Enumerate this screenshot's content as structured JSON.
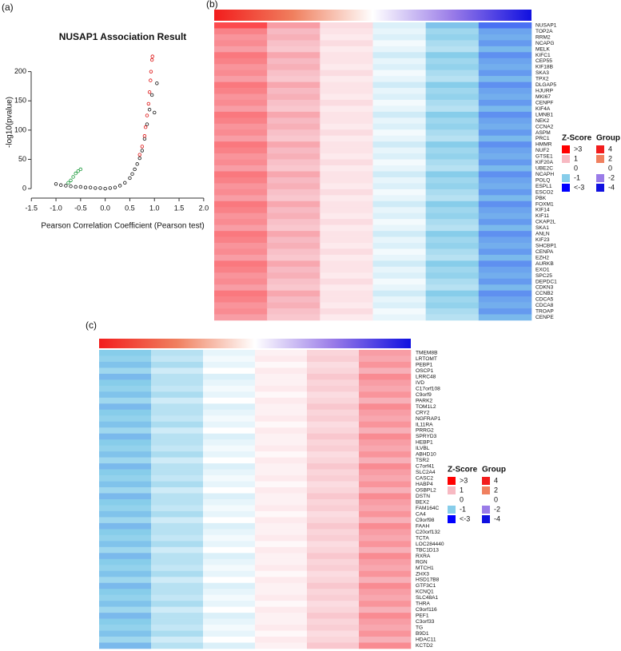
{
  "chart_data": [
    {
      "type": "scatter",
      "panel_label": "(a)",
      "title": "NUSAP1 Association Result",
      "x_label": "Pearson Correlation Coefficient (Pearson test)",
      "y_label": "-log10(pvalue)",
      "xlim": [
        -1.65,
        2.1
      ],
      "ylim": [
        -8,
        235
      ],
      "xticks": [
        -1.5,
        {
          "value": -1,
          "label": "-1.0"
        },
        -0.5,
        {
          "value": 0,
          "label": "0.0"
        },
        0.5,
        {
          "value": 1,
          "label": "1.0"
        },
        1.5,
        {
          "value": 2,
          "label": "2.0"
        }
      ],
      "yticks": [
        0,
        50,
        100,
        150,
        200
      ],
      "series": [
        {
          "color": "#111111",
          "x": [
            -1.0,
            -0.9,
            -0.8,
            -0.7,
            -0.6,
            -0.5,
            -0.4,
            -0.3,
            -0.2,
            -0.1,
            0,
            0.1,
            0.2,
            0.3,
            0.4,
            0.5,
            0.55,
            0.6,
            0.65,
            0.7,
            0.75,
            0.8,
            0.85,
            0.9,
            0.95,
            1.0,
            1.05
          ],
          "values": [
            8,
            6,
            5,
            4,
            3,
            3,
            2,
            2,
            1,
            1,
            0,
            1,
            2,
            5,
            10,
            18,
            25,
            33,
            42,
            52,
            65,
            85,
            110,
            135,
            160,
            130,
            180
          ]
        },
        {
          "color": "#dd1111",
          "x": [
            0.7,
            0.75,
            0.8,
            0.82,
            0.85,
            0.88,
            0.9,
            0.92,
            0.93,
            0.95,
            0.96
          ],
          "values": [
            58,
            72,
            90,
            105,
            125,
            145,
            165,
            185,
            200,
            220,
            226
          ]
        },
        {
          "color": "#1a9a3a",
          "x": [
            -0.75,
            -0.7,
            -0.65,
            -0.6,
            -0.55,
            -0.5
          ],
          "values": [
            10,
            14,
            20,
            26,
            30,
            33
          ]
        }
      ]
    },
    {
      "type": "heatmap",
      "panel_label": "(b)",
      "rows": [
        "NUSAP1",
        "TOP2A",
        "RRM2",
        "NCAPG",
        "MELK",
        "KIFC1",
        "CEP55",
        "KIF18B",
        "SKA3",
        "TPX2",
        "DLGAP5",
        "HJURP",
        "MKI67",
        "CENPF",
        "KIF4A",
        "LMNB1",
        "NEK2",
        "CCNA2",
        "ASPM",
        "PRC1",
        "HMMR",
        "NUF2",
        "GTSE1",
        "KIF20A",
        "UBE2C",
        "NCAPH",
        "POLQ",
        "ESPL1",
        "ESCO2",
        "PBK",
        "FOXM1",
        "KIF14",
        "KIF11",
        "CKAP2L",
        "SKA1",
        "ANLN",
        "KIF23",
        "SHCBP1",
        "CENPA",
        "EZH2",
        "AURKB",
        "EXO1",
        "SPC25",
        "DEPDC1",
        "CDKN3",
        "CCNB2",
        "CDCA5",
        "CDCA8",
        "TROAP",
        "CENPE"
      ],
      "values": [
        [
          2.2,
          1.3,
          0.5,
          -0.3,
          -1.1,
          -1.9
        ],
        [
          1.6,
          1.0,
          0.4,
          -0.2,
          -0.8,
          -1.4
        ],
        [
          1.4,
          1.1,
          0.3,
          -0.3,
          -0.9,
          -1.3
        ],
        [
          1.5,
          0.9,
          0.5,
          -0.1,
          -0.7,
          -1.5
        ],
        [
          1.3,
          0.8,
          0.3,
          -0.2,
          -0.6,
          -1.2
        ],
        [
          1.7,
          1.2,
          0.4,
          -0.4,
          -1.0,
          -1.6
        ],
        [
          1.6,
          1.0,
          0.4,
          -0.2,
          -0.8,
          -1.4
        ],
        [
          1.4,
          1.1,
          0.3,
          -0.3,
          -0.9,
          -1.3
        ],
        [
          1.5,
          0.9,
          0.5,
          -0.1,
          -0.7,
          -1.5
        ],
        [
          1.3,
          0.8,
          0.3,
          -0.2,
          -0.6,
          -1.2
        ],
        [
          1.7,
          1.2,
          0.4,
          -0.4,
          -1.0,
          -1.6
        ],
        [
          1.6,
          1.0,
          0.4,
          -0.2,
          -0.8,
          -1.4
        ],
        [
          1.4,
          1.1,
          0.3,
          -0.3,
          -0.9,
          -1.3
        ],
        [
          1.5,
          0.9,
          0.5,
          -0.1,
          -0.7,
          -1.5
        ],
        [
          1.3,
          0.8,
          0.3,
          -0.2,
          -0.6,
          -1.2
        ],
        [
          1.7,
          1.2,
          0.4,
          -0.4,
          -1.0,
          -1.6
        ],
        [
          1.6,
          1.0,
          0.4,
          -0.2,
          -0.8,
          -1.4
        ],
        [
          1.4,
          1.1,
          0.3,
          -0.3,
          -0.9,
          -1.3
        ],
        [
          1.5,
          0.9,
          0.5,
          -0.1,
          -0.7,
          -1.5
        ],
        [
          1.3,
          0.8,
          0.3,
          -0.2,
          -0.6,
          -1.2
        ],
        [
          1.7,
          1.2,
          0.4,
          -0.4,
          -1.0,
          -1.6
        ],
        [
          1.6,
          1.0,
          0.4,
          -0.2,
          -0.8,
          -1.4
        ],
        [
          1.4,
          1.1,
          0.3,
          -0.3,
          -0.9,
          -1.3
        ],
        [
          1.5,
          0.9,
          0.5,
          -0.1,
          -0.7,
          -1.5
        ],
        [
          1.3,
          0.8,
          0.3,
          -0.2,
          -0.6,
          -1.2
        ],
        [
          1.7,
          1.2,
          0.4,
          -0.4,
          -1.0,
          -1.6
        ],
        [
          1.6,
          1.0,
          0.4,
          -0.2,
          -0.8,
          -1.4
        ],
        [
          1.4,
          1.1,
          0.3,
          -0.3,
          -0.9,
          -1.3
        ],
        [
          1.5,
          0.9,
          0.5,
          -0.1,
          -0.7,
          -1.5
        ],
        [
          1.3,
          0.8,
          0.3,
          -0.2,
          -0.6,
          -1.2
        ],
        [
          1.7,
          1.2,
          0.4,
          -0.4,
          -1.0,
          -1.6
        ],
        [
          1.6,
          1.0,
          0.4,
          -0.2,
          -0.8,
          -1.4
        ],
        [
          1.4,
          1.1,
          0.3,
          -0.3,
          -0.9,
          -1.3
        ],
        [
          1.5,
          0.9,
          0.5,
          -0.1,
          -0.7,
          -1.5
        ],
        [
          1.3,
          0.8,
          0.3,
          -0.2,
          -0.6,
          -1.2
        ],
        [
          1.7,
          1.2,
          0.4,
          -0.4,
          -1.0,
          -1.6
        ],
        [
          1.6,
          1.0,
          0.4,
          -0.2,
          -0.8,
          -1.4
        ],
        [
          1.4,
          1.1,
          0.3,
          -0.3,
          -0.9,
          -1.3
        ],
        [
          1.5,
          0.9,
          0.5,
          -0.1,
          -0.7,
          -1.5
        ],
        [
          1.3,
          0.8,
          0.3,
          -0.2,
          -0.6,
          -1.2
        ],
        [
          1.7,
          1.2,
          0.4,
          -0.4,
          -1.0,
          -1.6
        ],
        [
          1.6,
          1.0,
          0.4,
          -0.2,
          -0.8,
          -1.4
        ],
        [
          1.4,
          1.1,
          0.3,
          -0.3,
          -0.9,
          -1.3
        ],
        [
          1.5,
          0.9,
          0.5,
          -0.1,
          -0.7,
          -1.5
        ],
        [
          1.3,
          0.8,
          0.3,
          -0.2,
          -0.6,
          -1.2
        ],
        [
          1.7,
          1.2,
          0.4,
          -0.4,
          -1.0,
          -1.6
        ],
        [
          1.6,
          1.0,
          0.4,
          -0.2,
          -0.8,
          -1.4
        ],
        [
          1.4,
          1.1,
          0.3,
          -0.3,
          -0.9,
          -1.3
        ],
        [
          1.5,
          0.9,
          0.5,
          -0.1,
          -0.7,
          -1.5
        ],
        [
          1.3,
          0.8,
          0.3,
          -0.2,
          -0.6,
          -1.2
        ]
      ],
      "legend": {
        "zscore_title": "Z-Score",
        "zscore": [
          {
            "value": 3,
            "label": ">3",
            "color": "#ff0000"
          },
          {
            "value": 1,
            "label": "1",
            "color": "#f7b9c2"
          },
          {
            "value": 0,
            "label": "0",
            "color": "#ffffff"
          },
          {
            "value": -1,
            "label": "-1",
            "color": "#87cdea"
          },
          {
            "value": -3,
            "label": "<-3",
            "color": "#0000ff"
          }
        ],
        "group_title": "Group",
        "group": [
          {
            "value": 4,
            "color": "#f21d1d"
          },
          {
            "value": 2,
            "color": "#f0805f"
          },
          {
            "value": 0,
            "color": "#ffffff"
          },
          {
            "value": -2,
            "color": "#9a7ce8"
          },
          {
            "value": -4,
            "color": "#1010e0"
          }
        ]
      }
    },
    {
      "type": "heatmap",
      "panel_label": "(c)",
      "rows": [
        "TMEM8B",
        "LRTOMT",
        "PEBP1",
        "OSCP1",
        "LRRC48",
        "IVD",
        "C17orf108",
        "C9orf9",
        "PARK2",
        "TOM1L2",
        "CRY2",
        "NGFRAP1",
        "IL11RA",
        "PRRG2",
        "SPRYD3",
        "HEBP1",
        "ILVBL",
        "ABHD10",
        "TSR2",
        "C7orf41",
        "SLC2A4",
        "CASC2",
        "HABP4",
        "OSBPL2",
        "DSTN",
        "BEX2",
        "FAM164C",
        "CA4",
        "C9orf98",
        "FAAH",
        "C20orf132",
        "TCTA",
        "LOC284440",
        "TBC1D13",
        "RXRA",
        "RGN",
        "MTCH1",
        "ZHX3",
        "HSD17B8",
        "GTF3C1",
        "KCNQ1",
        "SLC48A1",
        "THRA",
        "C9orf116",
        "PEF1",
        "C3orf33",
        "TG",
        "B9D1",
        "HDAC11",
        "KCTD2"
      ],
      "values": [
        [
          -1.0,
          -0.6,
          -0.2,
          0.2,
          0.6,
          1.3
        ],
        [
          -0.9,
          -0.5,
          -0.1,
          0.3,
          0.7,
          1.2
        ],
        [
          -1.1,
          -0.7,
          -0.2,
          0.1,
          0.5,
          1.4
        ],
        [
          -0.8,
          -0.4,
          0.0,
          0.3,
          0.6,
          1.1
        ],
        [
          -1.2,
          -0.6,
          -0.3,
          0.2,
          0.8,
          1.5
        ],
        [
          -1.0,
          -0.6,
          -0.2,
          0.2,
          0.6,
          1.3
        ],
        [
          -0.9,
          -0.5,
          -0.1,
          0.3,
          0.7,
          1.2
        ],
        [
          -1.1,
          -0.7,
          -0.2,
          0.1,
          0.5,
          1.4
        ],
        [
          -0.8,
          -0.4,
          0.0,
          0.3,
          0.6,
          1.1
        ],
        [
          -1.2,
          -0.6,
          -0.3,
          0.2,
          0.8,
          1.5
        ],
        [
          -1.0,
          -0.6,
          -0.2,
          0.2,
          0.6,
          1.3
        ],
        [
          -0.9,
          -0.5,
          -0.1,
          0.3,
          0.7,
          1.2
        ],
        [
          -1.1,
          -0.7,
          -0.2,
          0.1,
          0.5,
          1.4
        ],
        [
          -0.8,
          -0.4,
          0.0,
          0.3,
          0.6,
          1.1
        ],
        [
          -1.2,
          -0.6,
          -0.3,
          0.2,
          0.8,
          1.5
        ],
        [
          -1.0,
          -0.6,
          -0.2,
          0.2,
          0.6,
          1.3
        ],
        [
          -0.9,
          -0.5,
          -0.1,
          0.3,
          0.7,
          1.2
        ],
        [
          -1.1,
          -0.7,
          -0.2,
          0.1,
          0.5,
          1.4
        ],
        [
          -0.8,
          -0.4,
          0.0,
          0.3,
          0.6,
          1.1
        ],
        [
          -1.2,
          -0.6,
          -0.3,
          0.2,
          0.8,
          1.5
        ],
        [
          -1.0,
          -0.6,
          -0.2,
          0.2,
          0.6,
          1.3
        ],
        [
          -0.9,
          -0.5,
          -0.1,
          0.3,
          0.7,
          1.2
        ],
        [
          -1.1,
          -0.7,
          -0.2,
          0.1,
          0.5,
          1.4
        ],
        [
          -0.8,
          -0.4,
          0.0,
          0.3,
          0.6,
          1.1
        ],
        [
          -1.2,
          -0.6,
          -0.3,
          0.2,
          0.8,
          1.5
        ],
        [
          -1.0,
          -0.6,
          -0.2,
          0.2,
          0.6,
          1.3
        ],
        [
          -0.9,
          -0.5,
          -0.1,
          0.3,
          0.7,
          1.2
        ],
        [
          -1.1,
          -0.7,
          -0.2,
          0.1,
          0.5,
          1.4
        ],
        [
          -0.8,
          -0.4,
          0.0,
          0.3,
          0.6,
          1.1
        ],
        [
          -1.2,
          -0.6,
          -0.3,
          0.2,
          0.8,
          1.5
        ],
        [
          -1.0,
          -0.6,
          -0.2,
          0.2,
          0.6,
          1.3
        ],
        [
          -0.9,
          -0.5,
          -0.1,
          0.3,
          0.7,
          1.2
        ],
        [
          -1.1,
          -0.7,
          -0.2,
          0.1,
          0.5,
          1.4
        ],
        [
          -0.8,
          -0.4,
          0.0,
          0.3,
          0.6,
          1.1
        ],
        [
          -1.2,
          -0.6,
          -0.3,
          0.2,
          0.8,
          1.5
        ],
        [
          -1.0,
          -0.6,
          -0.2,
          0.2,
          0.6,
          1.3
        ],
        [
          -0.9,
          -0.5,
          -0.1,
          0.3,
          0.7,
          1.2
        ],
        [
          -1.1,
          -0.7,
          -0.2,
          0.1,
          0.5,
          1.4
        ],
        [
          -0.8,
          -0.4,
          0.0,
          0.3,
          0.6,
          1.1
        ],
        [
          -1.2,
          -0.6,
          -0.3,
          0.2,
          0.8,
          1.5
        ],
        [
          -1.0,
          -0.6,
          -0.2,
          0.2,
          0.6,
          1.3
        ],
        [
          -0.9,
          -0.5,
          -0.1,
          0.3,
          0.7,
          1.2
        ],
        [
          -1.1,
          -0.7,
          -0.2,
          0.1,
          0.5,
          1.4
        ],
        [
          -0.8,
          -0.4,
          0.0,
          0.3,
          0.6,
          1.1
        ],
        [
          -1.2,
          -0.6,
          -0.3,
          0.2,
          0.8,
          1.5
        ],
        [
          -1.0,
          -0.6,
          -0.2,
          0.2,
          0.6,
          1.3
        ],
        [
          -0.9,
          -0.5,
          -0.1,
          0.3,
          0.7,
          1.2
        ],
        [
          -1.1,
          -0.7,
          -0.2,
          0.1,
          0.5,
          1.4
        ],
        [
          -0.8,
          -0.4,
          0.0,
          0.3,
          0.6,
          1.1
        ],
        [
          -1.2,
          -0.6,
          -0.3,
          0.2,
          0.8,
          1.5
        ]
      ],
      "legend": {
        "zscore_title": "Z-Score",
        "zscore": [
          {
            "value": 3,
            "label": ">3",
            "color": "#ff0000"
          },
          {
            "value": 1,
            "label": "1",
            "color": "#f7b9c2"
          },
          {
            "value": 0,
            "label": "0",
            "color": "#ffffff"
          },
          {
            "value": -1,
            "label": "-1",
            "color": "#87cdea"
          },
          {
            "value": -3,
            "label": "<-3",
            "color": "#0000ff"
          }
        ],
        "group_title": "Group",
        "group": [
          {
            "value": 4,
            "color": "#f21d1d"
          },
          {
            "value": 2,
            "color": "#f0805f"
          },
          {
            "value": 0,
            "color": "#ffffff"
          },
          {
            "value": -2,
            "color": "#9a7ce8"
          },
          {
            "value": -4,
            "color": "#1010e0"
          }
        ]
      }
    }
  ]
}
